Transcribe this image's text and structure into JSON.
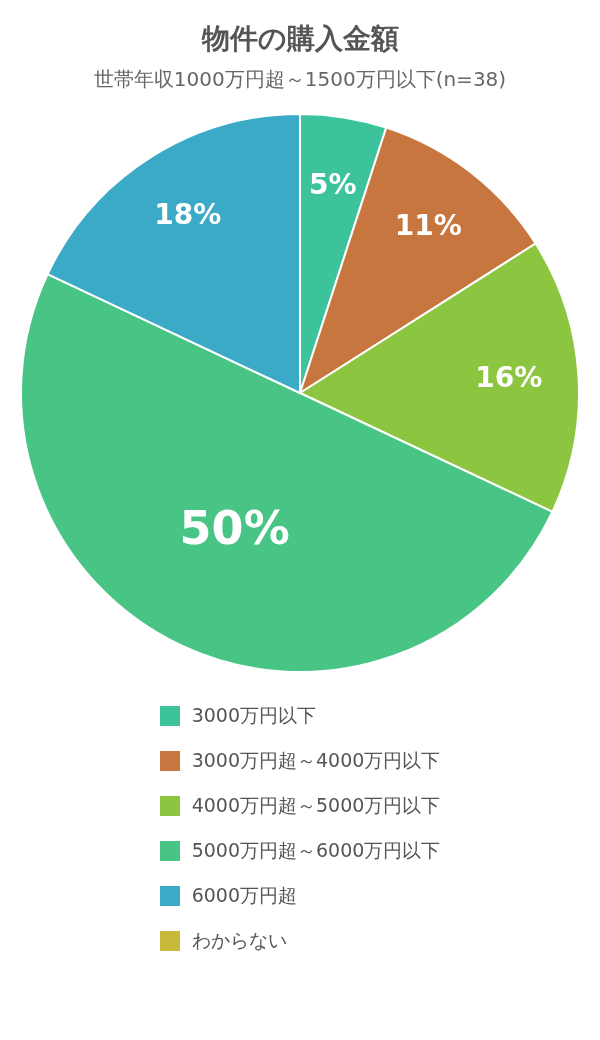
{
  "chart_data": {
    "type": "pie",
    "title": "物件の購入金額",
    "subtitle": "世帯年収1000万円超～1500万円以下(n=38)",
    "categories": [
      "3000万円以下",
      "3000万円超～4000万円以下",
      "4000万円超～5000万円以下",
      "5000万円超～6000万円以下",
      "6000万円超",
      "わからない"
    ],
    "values": [
      5,
      11,
      16,
      50,
      18,
      0
    ],
    "colors": [
      "#3cc39b",
      "#c8763f",
      "#8cc540",
      "#48c584",
      "#3aaac6",
      "#c9b93a"
    ],
    "value_labels": [
      "5%",
      "11%",
      "16%",
      "50%",
      "18%",
      null
    ],
    "legend": "bottom"
  }
}
